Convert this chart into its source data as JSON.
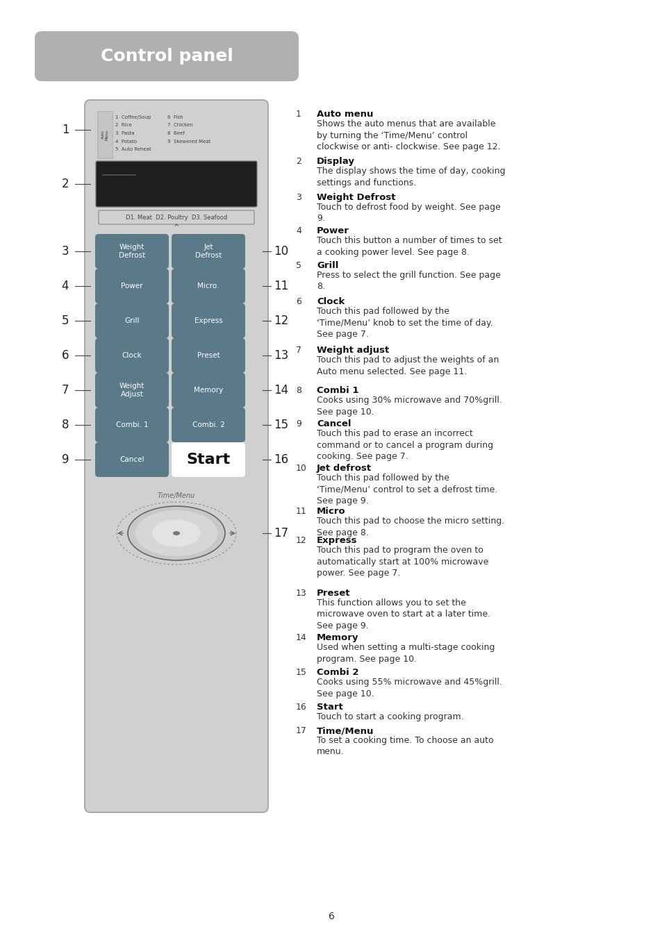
{
  "bg_color": "#ffffff",
  "title_text": "Control panel",
  "title_bg": "#b0b0b0",
  "title_color": "#ffffff",
  "page_number": "6",
  "panel_bg": "#d0d0d0",
  "panel_border": "#aaaaaa",
  "btn_color": "#5a7a8a",
  "btn_text_color": "#ffffff",
  "display_bg": "#1e1e1e",
  "defrost_label": "D1. Meat  D2. Poultry  D3. Seafood",
  "buttons_left": [
    "Weight\nDefrost",
    "Power",
    "Grill",
    "Clock",
    "Weight\nAdjust",
    "Combi. 1",
    "Cancel"
  ],
  "buttons_right": [
    "Jet\nDefrost",
    "Micro.",
    "Express",
    "Preset",
    "Memory",
    "Combi. 2",
    "Start"
  ],
  "annotations": [
    {
      "num": "1",
      "title": "Auto menu",
      "text": "Shows the auto menus that are available\nby turning the ‘Time/Menu’ control\nclockwise or anti- clockwise. See page 12."
    },
    {
      "num": "2",
      "title": "Display",
      "text": "The display shows the time of day, cooking\nsettings and functions."
    },
    {
      "num": "3",
      "title": "Weight Defrost",
      "text": "Touch to defrost food by weight. See page\n9."
    },
    {
      "num": "4",
      "title": "Power",
      "text": "Touch this button a number of times to set\na cooking power level. See page 8."
    },
    {
      "num": "5",
      "title": "Grill",
      "text": "Press to select the grill function. See page\n8."
    },
    {
      "num": "6",
      "title": "Clock",
      "text": "Touch this pad followed by the\n‘Time/Menu’ knob to set the time of day.\nSee page 7."
    },
    {
      "num": "7",
      "title": "Weight adjust",
      "text": "Touch this pad to adjust the weights of an\nAuto menu selected. See page 11."
    },
    {
      "num": "8",
      "title": "Combi 1",
      "text": "Cooks using 30% microwave and 70%grill.\nSee page 10."
    },
    {
      "num": "9",
      "title": "Cancel",
      "text": "Touch this pad to erase an incorrect\ncommand or to cancel a program during\ncooking. See page 7."
    },
    {
      "num": "10",
      "title": "Jet defrost",
      "text": "Touch this pad followed by the\n‘Time/Menu’ control to set a defrost time.\nSee page 9."
    },
    {
      "num": "11",
      "title": "Micro",
      "text": "Touch this pad to choose the micro setting.\nSee page 8."
    },
    {
      "num": "12",
      "title": "Express",
      "text": "Touch this pad to program the oven to\nautomatically start at 100% microwave\npower. See page 7."
    },
    {
      "num": "13",
      "title": "Preset",
      "text": "This function allows you to set the\nmicrowave oven to start at a later time.\nSee page 9."
    },
    {
      "num": "14",
      "title": "Memory",
      "text": "Used when setting a multi-stage cooking\nprogram. See page 10."
    },
    {
      "num": "15",
      "title": "Combi 2",
      "text": "Cooks using 55% microwave and 45%grill.\nSee page 10."
    },
    {
      "num": "16",
      "title": "Start",
      "text": "Touch to start a cooking program."
    },
    {
      "num": "17",
      "title": "Time/Menu",
      "text": "To set a cooking time. To choose an auto\nmenu."
    }
  ]
}
